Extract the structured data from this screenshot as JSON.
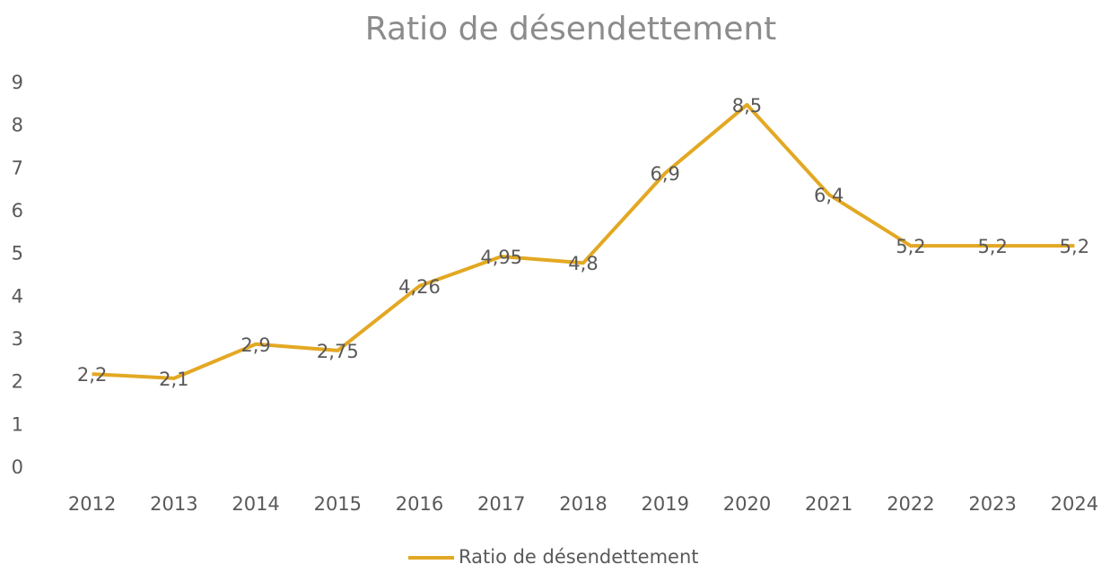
{
  "chart_data": {
    "type": "line",
    "title": "Ratio de désendettement",
    "categories": [
      "2012",
      "2013",
      "2014",
      "2015",
      "2016",
      "2017",
      "2018",
      "2019",
      "2020",
      "2021",
      "2022",
      "2023",
      "2024"
    ],
    "series": [
      {
        "name": "Ratio de désendettement",
        "color": "#e3a823",
        "values": [
          2.2,
          2.1,
          2.9,
          2.75,
          4.26,
          4.95,
          4.8,
          6.9,
          8.5,
          6.4,
          5.2,
          5.2,
          5.2
        ],
        "value_labels": [
          "2,2",
          "2,1",
          "2,9",
          "2,75",
          "4,26",
          "4,95",
          "4,8",
          "6,9",
          "8,5",
          "6,4",
          "5,2",
          "5,2",
          "5,2"
        ]
      }
    ],
    "ylim": [
      0,
      9
    ],
    "yticks": [
      0,
      1,
      2,
      3,
      4,
      5,
      6,
      7,
      8,
      9
    ],
    "grid": false,
    "legend": "bottom"
  }
}
